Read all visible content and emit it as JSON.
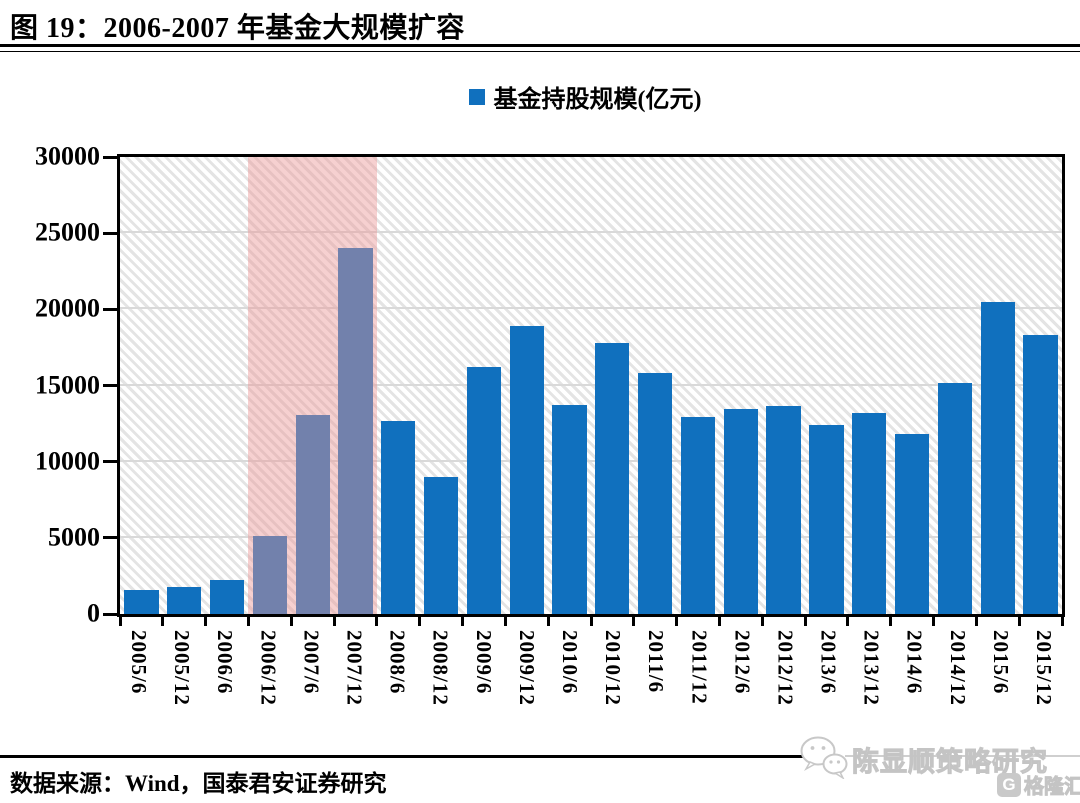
{
  "header": {
    "title": "图 19：2006-2007 年基金大规模扩容"
  },
  "legend": {
    "label": "基金持股规模(亿元)"
  },
  "chart_data": {
    "type": "bar",
    "title": "图 19：2006-2007 年基金大规模扩容",
    "legend_entries": [
      "基金持股规模(亿元)"
    ],
    "legend_position": "top-center",
    "categories": [
      "2005/6",
      "2005/12",
      "2006/6",
      "2006/12",
      "2007/6",
      "2007/12",
      "2008/6",
      "2008/12",
      "2009/6",
      "2009/12",
      "2010/6",
      "2010/12",
      "2011/6",
      "2011/12",
      "2012/6",
      "2012/12",
      "2013/6",
      "2013/12",
      "2014/6",
      "2014/12",
      "2015/6",
      "2015/12"
    ],
    "values": [
      1550,
      1750,
      2250,
      5150,
      13050,
      24050,
      12650,
      9000,
      16200,
      18900,
      13750,
      17800,
      15850,
      12950,
      13450,
      13650,
      12400,
      13200,
      11800,
      15150,
      20450,
      18300
    ],
    "xlabel": "",
    "ylabel": "",
    "ylim": [
      0,
      30000
    ],
    "yticks": [
      0,
      5000,
      10000,
      15000,
      20000,
      25000,
      30000
    ],
    "grid": "horizontal",
    "gridline_color": "#d9d9d9",
    "bar_color": "#1070BE",
    "axis_color": "#000000",
    "highlight": {
      "start_index": 3,
      "end_index": 5,
      "color": "rgba(236,151,151,0.45)"
    }
  },
  "footer": {
    "source": "数据来源：Wind，国泰君安证券研究",
    "watermark": "陈显顺策略研究",
    "logo_text": "格隆汇",
    "logo_badge_letter": "G"
  }
}
